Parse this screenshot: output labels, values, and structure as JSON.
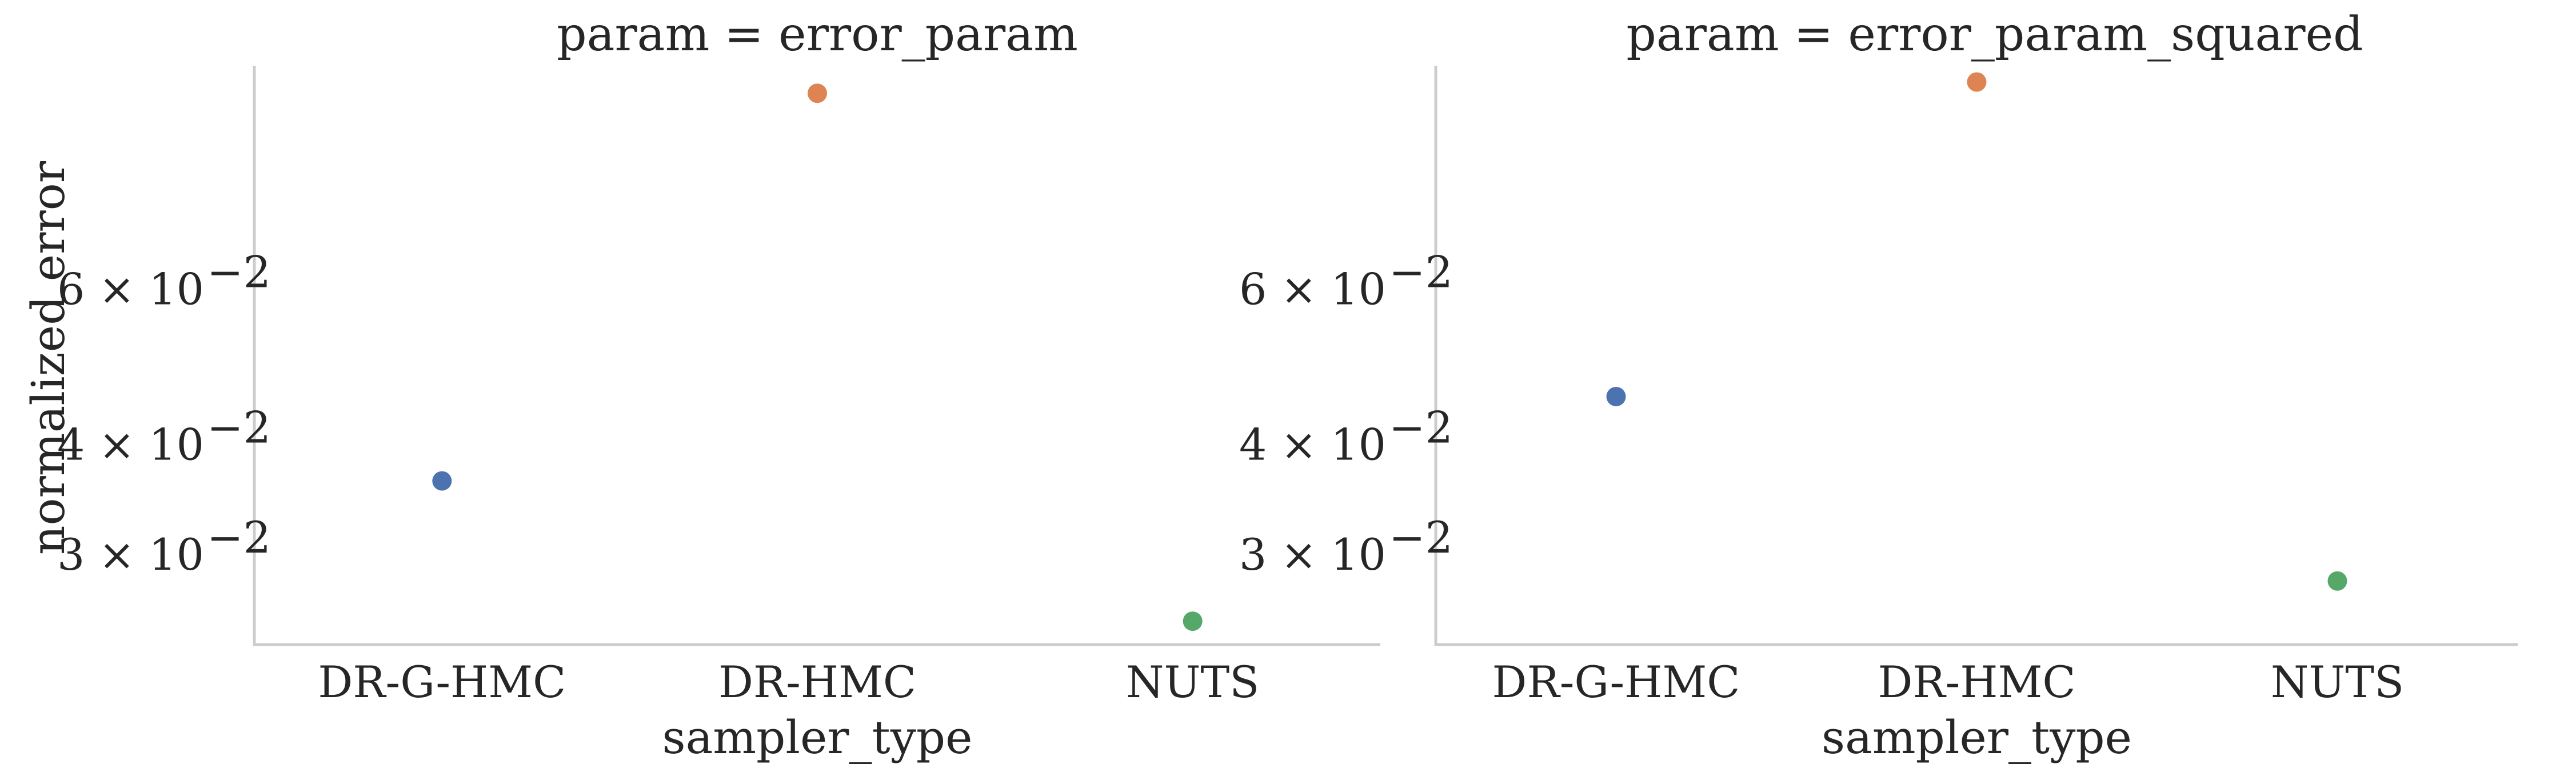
{
  "chart_data": [
    {
      "type": "scatter",
      "title": "param = error_param",
      "xlabel": "sampler_type",
      "ylabel": "normalized error",
      "yscale": "log",
      "categories": [
        "DR-G-HMC",
        "DR-HMC",
        "NUTS"
      ],
      "values": [
        0.0365,
        0.1005,
        0.0253
      ],
      "point_colors": [
        "#4c72b0",
        "#dd8452",
        "#55a868"
      ],
      "yticks": [
        {
          "value": 0.06,
          "base": "6 × 10",
          "exp": "−2"
        },
        {
          "value": 0.04,
          "base": "4 × 10",
          "exp": "−2"
        },
        {
          "value": 0.03,
          "base": "3 × 10",
          "exp": "−2"
        }
      ],
      "ylim": [
        0.0238,
        0.108
      ],
      "grid": false
    },
    {
      "type": "scatter",
      "title": "param = error_param_squared",
      "xlabel": "sampler_type",
      "ylabel": "",
      "yscale": "log",
      "categories": [
        "DR-G-HMC",
        "DR-HMC",
        "NUTS"
      ],
      "values": [
        0.0455,
        0.1035,
        0.0281
      ],
      "point_colors": [
        "#4c72b0",
        "#dd8452",
        "#55a868"
      ],
      "yticks": [
        {
          "value": 0.06,
          "base": "6 × 10",
          "exp": "−2"
        },
        {
          "value": 0.04,
          "base": "4 × 10",
          "exp": "−2"
        },
        {
          "value": 0.03,
          "base": "3 × 10",
          "exp": "−2"
        }
      ],
      "ylim": [
        0.0238,
        0.108
      ],
      "grid": false
    }
  ]
}
